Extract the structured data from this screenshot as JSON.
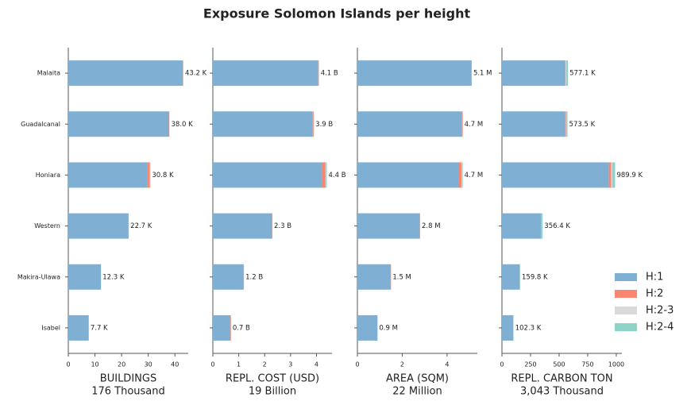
{
  "chart_data": {
    "type": "bar",
    "title": "Exposure Solomon Islands per height",
    "categories": [
      "Malaita",
      "Guadalcanal",
      "Honiara",
      "Western",
      "Makira-Ulawa",
      "Isabel"
    ],
    "legend": "lower right",
    "series": [
      {
        "name": "H:1",
        "color": "#7fb0d3"
      },
      {
        "name": "H:2",
        "color": "#f98670"
      },
      {
        "name": "H:2-3",
        "color": "#d9d9d9"
      },
      {
        "name": "H:2-4",
        "color": "#8dd3c7"
      }
    ],
    "panels": [
      {
        "xlabel": "BUILDINGS",
        "xsublabel": "176 Thousand",
        "xlim": [
          0,
          45
        ],
        "xticks": [
          0,
          10,
          20,
          30,
          40
        ],
        "series_values": [
          [
            43.0,
            37.7,
            29.6,
            22.6,
            12.25,
            7.65
          ],
          [
            0.1,
            0.2,
            1.0,
            0.05,
            0.03,
            0.03
          ],
          [
            0.05,
            0.05,
            0.1,
            0.02,
            0.01,
            0.01
          ],
          [
            0.05,
            0.05,
            0.1,
            0.03,
            0.01,
            0.01
          ]
        ],
        "totals": [
          43.2,
          38.0,
          30.8,
          22.7,
          12.3,
          7.7
        ],
        "total_labels": [
          "43.2 K",
          "38.0 K",
          "30.8 K",
          "22.7 K",
          "12.3 K",
          "7.7 K"
        ]
      },
      {
        "xlabel": "REPL. COST (USD)",
        "xsublabel": "19 Billion",
        "xlim": [
          0,
          4.6
        ],
        "xticks": [
          0,
          1,
          2,
          3,
          4
        ],
        "series_values": [
          [
            4.07,
            3.86,
            4.2,
            2.29,
            1.19,
            0.68
          ],
          [
            0.02,
            0.03,
            0.15,
            0.01,
            0.01,
            0.02
          ],
          [
            0.005,
            0.005,
            0.02,
            0,
            0,
            0
          ],
          [
            0.005,
            0.005,
            0.03,
            0,
            0,
            0
          ]
        ],
        "totals": [
          4.1,
          3.9,
          4.4,
          2.3,
          1.2,
          0.7
        ],
        "total_labels": [
          "4.1 B",
          "3.9 B",
          "4.4 B",
          "2.3 B",
          "1.2 B",
          "0.7 B"
        ]
      },
      {
        "xlabel": "AREA (SQM)",
        "xsublabel": "22 Million",
        "xlim": [
          0,
          5.35
        ],
        "xticks": [
          0,
          2,
          4
        ],
        "series_values": [
          [
            5.08,
            4.67,
            4.5,
            2.79,
            1.49,
            0.89
          ],
          [
            0.02,
            0.03,
            0.15,
            0.01,
            0.01,
            0.01
          ],
          [
            0,
            0,
            0.02,
            0,
            0,
            0
          ],
          [
            0,
            0,
            0.03,
            0,
            0,
            0
          ]
        ],
        "totals": [
          5.1,
          4.7,
          4.7,
          2.8,
          1.5,
          0.9
        ],
        "total_labels": [
          "5.1 M",
          "4.7 M",
          "4.7 M",
          "2.8 M",
          "1.5 M",
          "0.9 M"
        ]
      },
      {
        "xlabel": "REPL. CARBON TON",
        "xsublabel": "3,043 Thousand",
        "xlim": [
          0,
          1049
        ],
        "xticks": [
          0,
          250,
          500,
          750,
          1000
        ],
        "series_values": [
          [
            555,
            555,
            935,
            345,
            155,
            98
          ],
          [
            2,
            5,
            20,
            1,
            0.5,
            0.5
          ],
          [
            5,
            3,
            10,
            2,
            1,
            1
          ],
          [
            15.1,
            10.5,
            24.9,
            8.4,
            3.3,
            2.8
          ]
        ],
        "totals": [
          577.1,
          573.5,
          989.9,
          356.4,
          159.8,
          102.3
        ],
        "total_labels": [
          "577.1 K",
          "573.5 K",
          "989.9 K",
          "356.4 K",
          "159.8 K",
          "102.3 K"
        ]
      }
    ]
  }
}
